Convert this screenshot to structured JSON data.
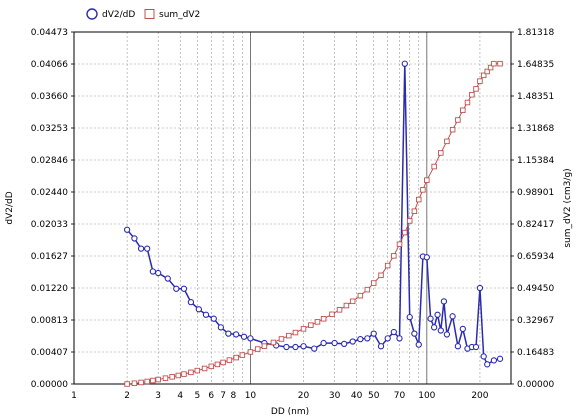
{
  "chart_data": {
    "type": "line",
    "xlabel": "DD (nm)",
    "ylabel": "dV2/dD",
    "y2label": "sum_dV2 (cm3/g)",
    "xscale": "log",
    "xlim": [
      1,
      300
    ],
    "ylim": [
      0,
      0.04473
    ],
    "y2lim": [
      0,
      1.81318
    ],
    "grid": true,
    "legend_position": "top-left",
    "x_tick_labels": [
      "1",
      "2",
      "3",
      "4",
      "5",
      "6",
      "7",
      "8",
      "10",
      "20",
      "30",
      "40",
      "50",
      "70",
      "100",
      "200"
    ],
    "y_tick_labels": [
      "0.00000",
      "0.00407",
      "0.00813",
      "0.01220",
      "0.01627",
      "0.02033",
      "0.02440",
      "0.02846",
      "0.03253",
      "0.03660",
      "0.04066",
      "0.04473"
    ],
    "y2_tick_labels": [
      "0.00000",
      "0.16483",
      "0.32967",
      "0.49450",
      "0.65934",
      "0.82417",
      "0.98901",
      "1.15384",
      "1.31868",
      "1.48351",
      "1.64835",
      "1.81318"
    ],
    "series": [
      {
        "name": "dV2/dD",
        "axis": "left",
        "color": "#2b2bb0",
        "marker": "circle",
        "x": [
          2.0,
          2.2,
          2.4,
          2.6,
          2.8,
          3.0,
          3.4,
          3.8,
          4.2,
          4.6,
          5.1,
          5.6,
          6.2,
          6.8,
          7.5,
          8.3,
          9.2,
          10,
          12,
          14,
          16,
          18,
          20,
          23,
          26,
          30,
          34,
          38,
          42,
          46,
          50,
          55,
          60,
          65,
          70,
          75,
          80,
          85,
          90,
          95,
          100,
          105,
          110,
          115,
          120,
          125,
          130,
          140,
          150,
          160,
          170,
          180,
          190,
          200,
          210,
          220,
          240,
          260
        ],
        "values": [
          0.0196,
          0.0185,
          0.0172,
          0.0172,
          0.0143,
          0.0141,
          0.0134,
          0.0121,
          0.0121,
          0.0104,
          0.0095,
          0.0088,
          0.0083,
          0.0072,
          0.0064,
          0.0063,
          0.006,
          0.0058,
          0.0052,
          0.0049,
          0.0047,
          0.0047,
          0.0048,
          0.0045,
          0.0052,
          0.0052,
          0.0051,
          0.0054,
          0.0057,
          0.0058,
          0.0064,
          0.0048,
          0.0058,
          0.0066,
          0.0058,
          0.0407,
          0.0085,
          0.0064,
          0.005,
          0.0162,
          0.0161,
          0.0083,
          0.0072,
          0.0088,
          0.0068,
          0.0105,
          0.0063,
          0.0086,
          0.0048,
          0.007,
          0.0045,
          0.0047,
          0.0047,
          0.0122,
          0.0035,
          0.0025,
          0.003,
          0.0032
        ]
      },
      {
        "name": "sum_dV2",
        "axis": "right",
        "color": "#c05050",
        "marker": "square",
        "x": [
          2.0,
          2.2,
          2.4,
          2.6,
          2.8,
          3.0,
          3.3,
          3.6,
          3.9,
          4.2,
          4.6,
          5.0,
          5.5,
          6.0,
          6.5,
          7.0,
          7.6,
          8.3,
          9.0,
          10,
          11,
          12,
          13.5,
          15,
          16.5,
          18,
          20,
          22,
          24,
          26,
          29,
          32,
          35,
          38,
          42,
          46,
          50,
          55,
          60,
          65,
          70,
          75,
          80,
          85,
          90,
          95,
          100,
          110,
          120,
          130,
          140,
          150,
          160,
          170,
          180,
          190,
          200,
          210,
          220,
          230,
          240,
          260
        ],
        "values": [
          0.0,
          0.004,
          0.008,
          0.013,
          0.018,
          0.023,
          0.03,
          0.037,
          0.044,
          0.051,
          0.06,
          0.069,
          0.08,
          0.091,
          0.101,
          0.111,
          0.123,
          0.136,
          0.149,
          0.165,
          0.18,
          0.195,
          0.214,
          0.232,
          0.249,
          0.265,
          0.284,
          0.303,
          0.32,
          0.336,
          0.359,
          0.382,
          0.404,
          0.426,
          0.455,
          0.486,
          0.52,
          0.56,
          0.61,
          0.66,
          0.72,
          0.78,
          0.84,
          0.89,
          0.95,
          1.0,
          1.05,
          1.12,
          1.19,
          1.25,
          1.31,
          1.36,
          1.41,
          1.45,
          1.49,
          1.52,
          1.56,
          1.59,
          1.61,
          1.63,
          1.65,
          1.65
        ]
      }
    ]
  }
}
